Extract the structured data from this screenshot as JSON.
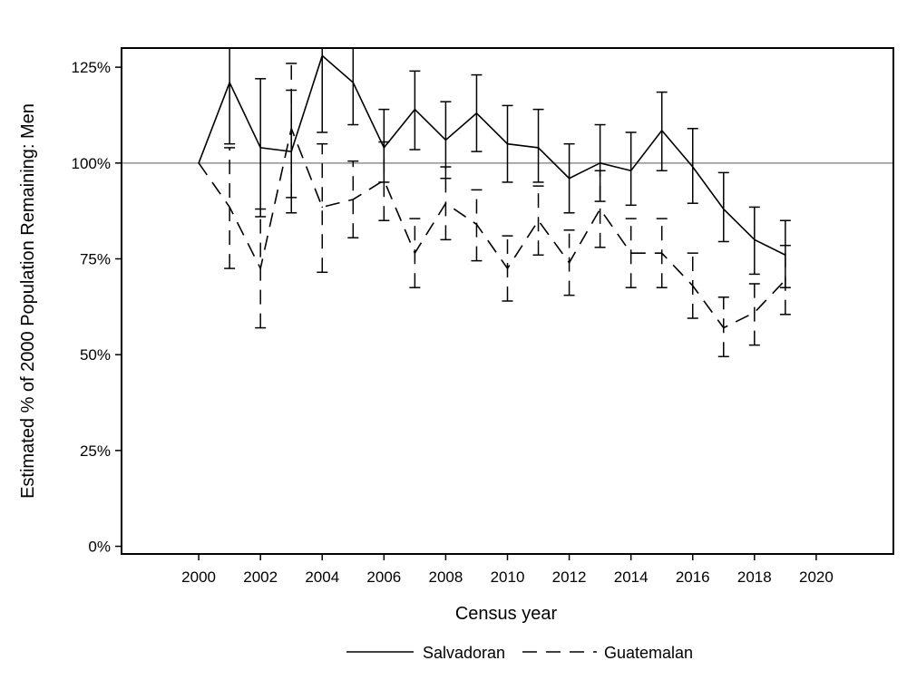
{
  "chart_data": {
    "type": "line",
    "title": "",
    "xlabel": "Census year",
    "ylabel": "Estimated % of 2000 Population Remaining: Men",
    "xlim": [
      1997.5,
      2022.5
    ],
    "ylim": [
      -2,
      130
    ],
    "xticks": [
      2000,
      2002,
      2004,
      2006,
      2008,
      2010,
      2012,
      2014,
      2016,
      2018,
      2020
    ],
    "yticks": [
      0,
      25,
      50,
      75,
      100,
      125
    ],
    "ytick_labels": [
      "0%",
      "25%",
      "50%",
      "75%",
      "100%",
      "125%"
    ],
    "reference_line": 100,
    "reference_color": "#909090",
    "grid": false,
    "legend_position": "bottom",
    "series": [
      {
        "name": "Salvadoran",
        "style": "solid",
        "x": [
          2000,
          2001,
          2002,
          2003,
          2004,
          2005,
          2006,
          2007,
          2008,
          2009,
          2010,
          2011,
          2012,
          2013,
          2014,
          2015,
          2016,
          2017,
          2018,
          2019
        ],
        "y": [
          100,
          121,
          104,
          103,
          128,
          121,
          104,
          114,
          106,
          113,
          105,
          104,
          96,
          100,
          98,
          108.5,
          99,
          88,
          80,
          76
        ],
        "lower": [
          null,
          105,
          86,
          87,
          108,
          110,
          95,
          103.5,
          96,
          103,
          95,
          95,
          87,
          90,
          89,
          98,
          89.5,
          79.5,
          71,
          67.5
        ],
        "upper": [
          null,
          132,
          122,
          119,
          132,
          131,
          114,
          124,
          116,
          123,
          115,
          114,
          105,
          110,
          108,
          118.5,
          109,
          97.5,
          88.5,
          85
        ]
      },
      {
        "name": "Guatemalan",
        "style": "dashed",
        "x": [
          2000,
          2001,
          2002,
          2003,
          2004,
          2005,
          2006,
          2007,
          2008,
          2009,
          2010,
          2011,
          2012,
          2013,
          2014,
          2015,
          2016,
          2017,
          2018,
          2019
        ],
        "y": [
          100,
          88.5,
          72.5,
          109,
          88.5,
          90.5,
          95.5,
          76.5,
          89.5,
          84,
          72.5,
          85,
          74,
          88,
          76.5,
          76.5,
          68,
          57,
          61,
          69.5
        ],
        "lower": [
          null,
          72.5,
          57,
          91,
          71.5,
          80.5,
          85,
          67.5,
          80,
          74.5,
          64,
          76,
          65.5,
          78,
          67.5,
          67.5,
          59.5,
          49.5,
          52.5,
          60.5
        ],
        "upper": [
          null,
          104,
          88,
          126,
          105,
          100.5,
          105.5,
          85.5,
          99,
          93,
          81,
          94,
          82.5,
          98,
          85.5,
          85.5,
          76.5,
          65,
          68.5,
          78.5
        ]
      }
    ]
  }
}
